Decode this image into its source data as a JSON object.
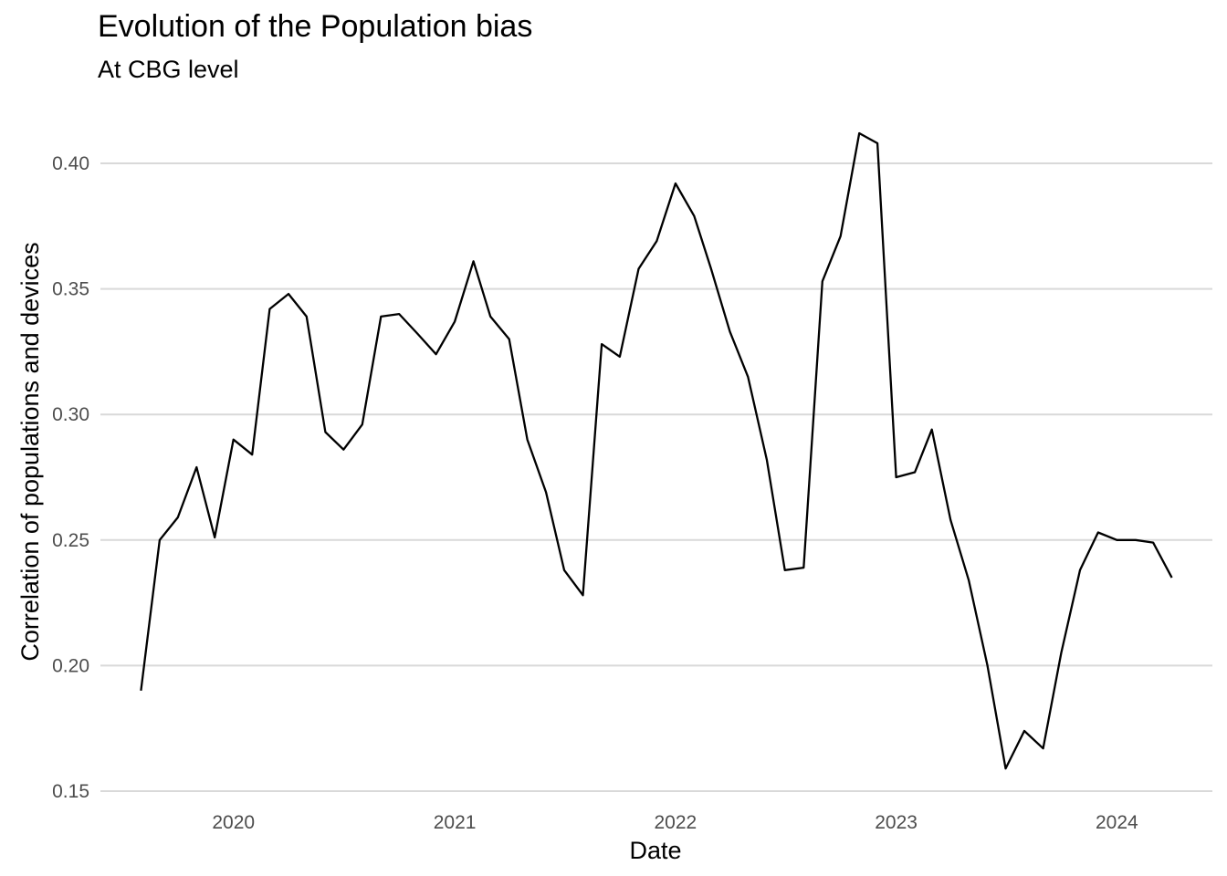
{
  "chart_data": {
    "type": "line",
    "title": "Evolution of the Population bias",
    "subtitle": "At CBG level",
    "xlabel": "Date",
    "ylabel": "Correlation of populations and devices",
    "ylim": [
      0.15,
      0.42
    ],
    "xlim": [
      "2019-05-26",
      "2024-06-07"
    ],
    "y_ticks": [
      0.15,
      0.2,
      0.25,
      0.3,
      0.35,
      0.4
    ],
    "y_tick_labels": [
      "0.15",
      "0.20",
      "0.25",
      "0.30",
      "0.35",
      "0.40"
    ],
    "x_ticks": [
      "2020-01-01",
      "2021-01-01",
      "2022-01-01",
      "2023-01-01",
      "2024-01-01"
    ],
    "x_tick_labels": [
      "2020",
      "2021",
      "2022",
      "2023",
      "2024"
    ],
    "grid": "horizontal major",
    "line_color": "#000000",
    "grid_color": "#d9d9d9",
    "series": [
      {
        "x": [
          "2019-08-01",
          "2019-09-01",
          "2019-10-01",
          "2019-11-01",
          "2019-12-01",
          "2020-01-01",
          "2020-02-01",
          "2020-03-01",
          "2020-04-01",
          "2020-05-01",
          "2020-06-01",
          "2020-07-01",
          "2020-08-01",
          "2020-09-01",
          "2020-10-01",
          "2020-11-01",
          "2020-12-01",
          "2021-01-01",
          "2021-02-01",
          "2021-03-01",
          "2021-04-01",
          "2021-05-01",
          "2021-06-01",
          "2021-07-01",
          "2021-08-01",
          "2021-09-01",
          "2021-10-01",
          "2021-11-01",
          "2021-12-01",
          "2022-01-01",
          "2022-02-01",
          "2022-03-01",
          "2022-04-01",
          "2022-05-01",
          "2022-06-01",
          "2022-07-01",
          "2022-08-01",
          "2022-09-01",
          "2022-10-01",
          "2022-11-01",
          "2022-12-01",
          "2023-01-01",
          "2023-02-01",
          "2023-03-01",
          "2023-04-01",
          "2023-05-01",
          "2023-06-01",
          "2023-07-01",
          "2023-08-01",
          "2023-09-01",
          "2023-10-01",
          "2023-11-01",
          "2023-12-01",
          "2024-01-01",
          "2024-02-01",
          "2024-03-01",
          "2024-04-01"
        ],
        "values": [
          0.19,
          0.25,
          0.259,
          0.279,
          0.251,
          0.29,
          0.284,
          0.342,
          0.348,
          0.339,
          0.293,
          0.286,
          0.296,
          0.339,
          0.34,
          0.332,
          0.324,
          0.337,
          0.361,
          0.339,
          0.33,
          0.29,
          0.269,
          0.238,
          0.228,
          0.328,
          0.323,
          0.358,
          0.369,
          0.392,
          0.379,
          0.358,
          0.333,
          0.315,
          0.282,
          0.238,
          0.239,
          0.353,
          0.371,
          0.412,
          0.408,
          0.275,
          0.277,
          0.294,
          0.258,
          0.234,
          0.2,
          0.159,
          0.174,
          0.167,
          0.205,
          0.238,
          0.253,
          0.25,
          0.25,
          0.249,
          0.235
        ]
      }
    ]
  }
}
